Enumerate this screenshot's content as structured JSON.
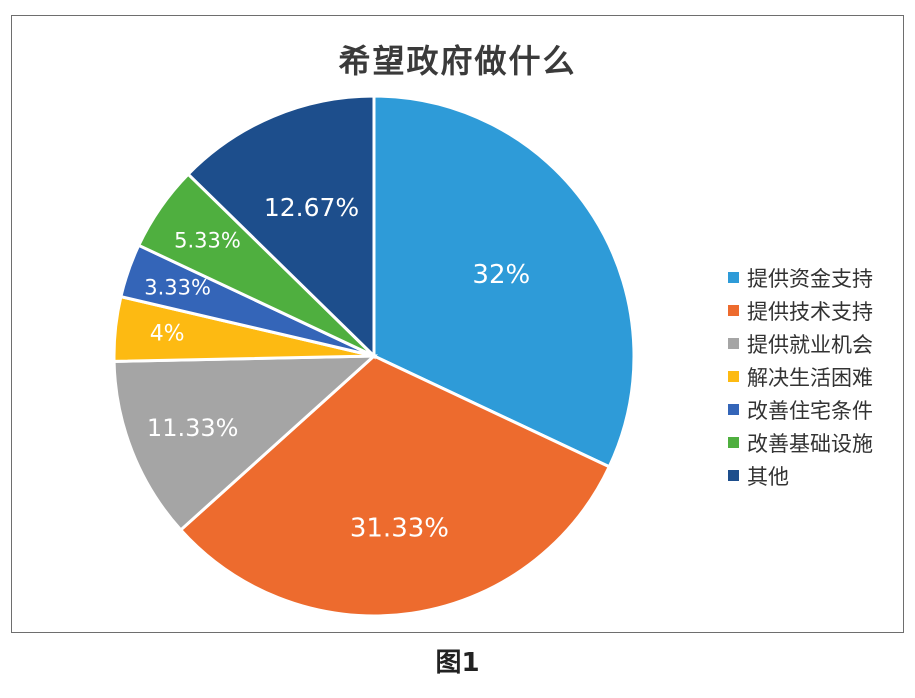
{
  "chart_data": {
    "type": "pie",
    "title": "希望政府做什么",
    "categories": [
      "提供资金支持",
      "提供技术支持",
      "提供就业机会",
      "解决生活困难",
      "改善住宅条件",
      "改善基础设施",
      "其他"
    ],
    "values": [
      32,
      31.33,
      11.33,
      4,
      3.33,
      5.33,
      12.67
    ],
    "data_labels": [
      "32%",
      "31.33%",
      "11.33%",
      "4%",
      "3.33%",
      "5.33%",
      "12.67%"
    ],
    "colors": [
      "#2E9BD8",
      "#ED6B2E",
      "#A5A5A5",
      "#FDBA12",
      "#3465B8",
      "#4FAF3F",
      "#1D4E8C"
    ],
    "legend_position": "right",
    "unit": "%"
  },
  "caption": "图1"
}
